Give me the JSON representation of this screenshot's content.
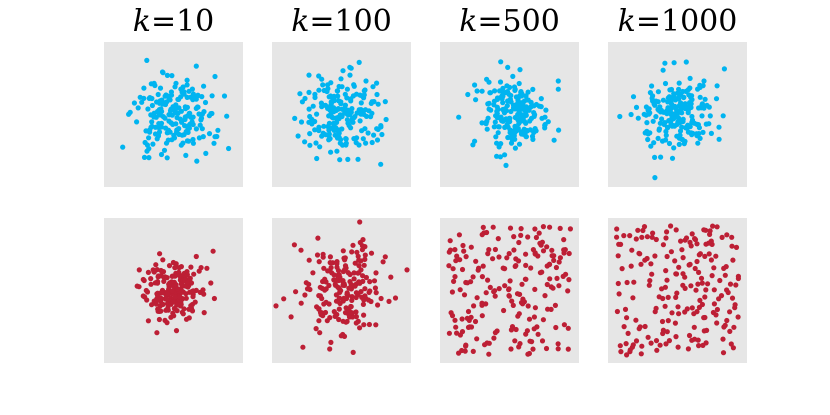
{
  "chart_data": [
    {
      "type": "scatter",
      "column_title": {
        "var": "k",
        "eq": "=10"
      },
      "row": "top",
      "color": "#00b4f0",
      "spread": "gaussian",
      "n_points": 200,
      "background": "#e6e6e6",
      "grid": false,
      "seed": 11
    },
    {
      "type": "scatter",
      "column_title": {
        "var": "k",
        "eq": "=100"
      },
      "row": "top",
      "color": "#00b4f0",
      "spread": "gaussian",
      "n_points": 200,
      "background": "#e6e6e6",
      "grid": false,
      "seed": 12
    },
    {
      "type": "scatter",
      "column_title": {
        "var": "k",
        "eq": "=500"
      },
      "row": "top",
      "color": "#00b4f0",
      "spread": "gaussian",
      "n_points": 200,
      "background": "#e6e6e6",
      "grid": false,
      "seed": 13
    },
    {
      "type": "scatter",
      "column_title": {
        "var": "k",
        "eq": "=1000"
      },
      "row": "top",
      "color": "#00b4f0",
      "spread": "gaussian",
      "n_points": 200,
      "background": "#e6e6e6",
      "grid": false,
      "seed": 14
    },
    {
      "type": "scatter",
      "row": "bottom",
      "color": "#bd1f35",
      "spread": "gaussian-tight",
      "n_points": 200,
      "background": "#e6e6e6",
      "grid": false,
      "seed": 21
    },
    {
      "type": "scatter",
      "row": "bottom",
      "color": "#bd1f35",
      "spread": "gaussian-wide",
      "n_points": 200,
      "background": "#e6e6e6",
      "grid": false,
      "seed": 22
    },
    {
      "type": "scatter",
      "row": "bottom",
      "color": "#bd1f35",
      "spread": "uniform",
      "n_points": 200,
      "background": "#e6e6e6",
      "grid": false,
      "seed": 23
    },
    {
      "type": "scatter",
      "row": "bottom",
      "color": "#bd1f35",
      "spread": "uniform",
      "n_points": 200,
      "background": "#e6e6e6",
      "grid": false,
      "seed": 24
    }
  ]
}
